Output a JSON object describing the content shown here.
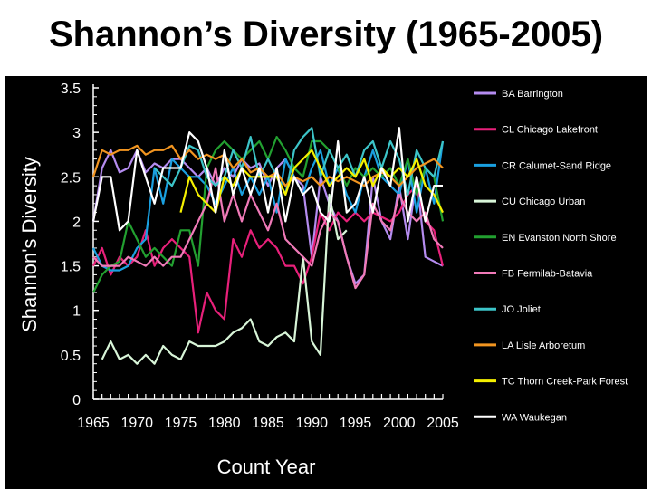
{
  "page": {
    "title": "Shannon’s Diversity (1965-2005)"
  },
  "chart_data": {
    "type": "line",
    "title": "Shannon’s Diversity (1965-2005)",
    "xlabel": "Count Year",
    "ylabel": "Shannon's Diversity",
    "xlim": [
      1965,
      2005
    ],
    "ylim": [
      0,
      3.5
    ],
    "xticks": [
      1965,
      1970,
      1975,
      1980,
      1985,
      1990,
      1995,
      2000,
      2005
    ],
    "yticks": [
      0,
      0.5,
      1,
      1.5,
      2,
      2.5,
      3,
      3.5
    ],
    "grid": false,
    "legend_position": "right",
    "background": "#000000",
    "series": [
      {
        "name": "BA Barrington",
        "color": "#b58cf0",
        "x": [
          1965,
          1966,
          1967,
          1968,
          1969,
          1970,
          1971,
          1972,
          1973,
          1974,
          1975,
          1976,
          1977,
          1978,
          1979,
          1980,
          1981,
          1982,
          1983,
          1984,
          1985,
          1986,
          1987,
          1988,
          1989,
          1990,
          1991,
          1992,
          1993,
          1994,
          1995,
          1996,
          1997,
          1998,
          1999,
          2000,
          2001,
          2002,
          2003,
          2004,
          2005
        ],
        "y": [
          2.0,
          2.6,
          2.8,
          2.55,
          2.6,
          2.8,
          2.55,
          2.65,
          2.6,
          2.7,
          2.7,
          2.6,
          2.5,
          2.6,
          2.4,
          2.6,
          2.5,
          2.7,
          2.6,
          2.65,
          2.4,
          2.6,
          2.7,
          2.5,
          2.4,
          1.6,
          2.5,
          2.2,
          2.0,
          1.6,
          1.3,
          1.4,
          2.5,
          2.0,
          1.8,
          2.4,
          1.8,
          2.5,
          1.6,
          1.55,
          1.5
        ]
      },
      {
        "name": "CL Chicago Lakefront",
        "color": "#e8207a",
        "x": [
          1965,
          1966,
          1967,
          1968,
          1969,
          1970,
          1971,
          1972,
          1973,
          1974,
          1975,
          1976,
          1977,
          1978,
          1979,
          1980,
          1981,
          1982,
          1983,
          1984,
          1985,
          1986,
          1987,
          1988,
          1989,
          1990,
          1991,
          1992,
          1993,
          1994,
          1995,
          1996,
          1997,
          1998,
          1999,
          2000,
          2001,
          2002,
          2003,
          2004,
          2005
        ],
        "y": [
          1.5,
          1.7,
          1.4,
          1.6,
          1.5,
          1.6,
          1.9,
          1.5,
          1.7,
          1.8,
          1.7,
          1.6,
          0.75,
          1.2,
          1.0,
          0.9,
          1.8,
          1.6,
          1.9,
          1.7,
          1.8,
          1.7,
          1.5,
          1.5,
          1.3,
          1.6,
          2.1,
          1.9,
          2.1,
          2.0,
          2.1,
          2.0,
          2.1,
          2.05,
          2.0,
          2.1,
          2.3,
          2.4,
          2.0,
          1.9,
          1.5
        ]
      },
      {
        "name": "CR Calumet-Sand Ridge",
        "color": "#1aa0e0",
        "x": [
          1965,
          1966,
          1967,
          1968,
          1969,
          1970,
          1971,
          1972,
          1973,
          1974,
          1975,
          1976,
          1977,
          1978,
          1979,
          1980,
          1981,
          1982,
          1983,
          1984,
          1985,
          1986,
          1987,
          1988,
          1989,
          1990,
          1991,
          1992,
          1993,
          1994,
          1995,
          1996,
          1997,
          1998,
          1999,
          2000,
          2001,
          2002,
          2003,
          2004,
          2005
        ],
        "y": [
          1.7,
          1.5,
          1.45,
          1.45,
          1.5,
          1.7,
          1.8,
          2.6,
          2.2,
          2.7,
          2.6,
          2.5,
          2.5,
          2.4,
          2.2,
          2.4,
          2.6,
          2.3,
          2.5,
          2.3,
          2.5,
          2.1,
          2.7,
          2.5,
          2.3,
          2.6,
          2.8,
          2.4,
          2.6,
          2.3,
          2.1,
          2.5,
          2.8,
          2.5,
          2.4,
          2.3,
          2.7,
          2.1,
          2.6,
          2.2,
          2.9
        ]
      },
      {
        "name": "CU Chicago Urban",
        "color": "#d8f5d8",
        "x": [
          1966,
          1967,
          1968,
          1969,
          1970,
          1971,
          1972,
          1973,
          1974,
          1975,
          1976,
          1977,
          1978,
          1979,
          1980,
          1981,
          1982,
          1983,
          1984,
          1985,
          1986,
          1987,
          1988,
          1989,
          1990,
          1991,
          1992,
          1993,
          1994
        ],
        "y": [
          0.45,
          0.65,
          0.45,
          0.5,
          0.4,
          0.5,
          0.4,
          0.6,
          0.5,
          0.45,
          0.65,
          0.6,
          0.6,
          0.6,
          0.65,
          0.75,
          0.8,
          0.9,
          0.65,
          0.6,
          0.7,
          0.75,
          0.65,
          1.6,
          0.65,
          0.5,
          2.3,
          1.8,
          1.9
        ]
      },
      {
        "name": "EN Evanston North Shore",
        "color": "#22a030",
        "x": [
          1965,
          1966,
          1967,
          1968,
          1969,
          1970,
          1971,
          1972,
          1973,
          1974,
          1975,
          1976,
          1977,
          1978,
          1979,
          1980,
          1981,
          1982,
          1983,
          1984,
          1985,
          1986,
          1987,
          1988,
          1989,
          1990,
          1991,
          1992,
          1993,
          1994,
          1995,
          1996,
          1997,
          1998,
          1999,
          2000,
          2001,
          2002,
          2003,
          2004,
          2005
        ],
        "y": [
          1.2,
          1.4,
          1.5,
          1.55,
          2.0,
          1.8,
          1.6,
          1.7,
          1.6,
          1.5,
          1.9,
          1.9,
          1.5,
          2.6,
          2.8,
          2.9,
          2.8,
          2.7,
          2.8,
          2.9,
          2.7,
          2.95,
          2.8,
          2.6,
          2.5,
          2.9,
          2.9,
          2.8,
          2.6,
          2.4,
          2.6,
          2.5,
          2.6,
          2.5,
          2.6,
          2.4,
          2.7,
          2.3,
          2.6,
          2.5,
          2.0
        ]
      },
      {
        "name": "FB Fermilab-Batavia",
        "color": "#f07ab8",
        "x": [
          1965,
          1966,
          1967,
          1968,
          1969,
          1970,
          1971,
          1972,
          1973,
          1974,
          1975,
          1976,
          1977,
          1978,
          1979,
          1980,
          1981,
          1982,
          1983,
          1984,
          1985,
          1986,
          1987,
          1988,
          1989,
          1990,
          1991,
          1992,
          1993,
          1994,
          1995,
          1996,
          1997,
          1998,
          1999,
          2000,
          2001,
          2002,
          2003,
          2004,
          2005
        ],
        "y": [
          1.6,
          1.5,
          1.5,
          1.5,
          1.6,
          1.55,
          1.5,
          1.6,
          1.5,
          1.6,
          1.6,
          1.8,
          2.0,
          2.2,
          2.6,
          2.0,
          2.3,
          2.0,
          2.3,
          2.1,
          1.9,
          2.2,
          1.8,
          1.7,
          1.6,
          1.5,
          1.9,
          2.1,
          2.0,
          1.6,
          1.25,
          1.4,
          2.2,
          2.0,
          1.9,
          2.3,
          2.1,
          2.0,
          2.1,
          1.8,
          1.7
        ]
      },
      {
        "name": "JO Joliet",
        "color": "#3cc4c8",
        "x": [
          1972,
          1973,
          1974,
          1975,
          1976,
          1977,
          1978,
          1979,
          1980,
          1981,
          1982,
          1983,
          1984,
          1985,
          1986,
          1987,
          1988,
          1989,
          1990,
          1991,
          1992,
          1993,
          1994,
          1995,
          1996,
          1997,
          1998,
          1999,
          2000,
          2001,
          2002,
          2003,
          2004,
          2005
        ],
        "y": [
          2.6,
          2.5,
          2.4,
          2.6,
          2.85,
          2.8,
          2.5,
          2.4,
          2.5,
          2.8,
          2.6,
          2.95,
          2.5,
          2.7,
          2.5,
          2.3,
          2.8,
          2.95,
          3.05,
          2.5,
          2.8,
          2.6,
          2.75,
          2.5,
          2.8,
          2.9,
          2.6,
          2.9,
          2.7,
          2.3,
          2.8,
          2.6,
          2.5,
          2.9
        ]
      },
      {
        "name": "LA Lisle Arboretum",
        "color": "#f29520",
        "x": [
          1965,
          1966,
          1967,
          1968,
          1969,
          1970,
          1971,
          1972,
          1973,
          1974,
          1975,
          1976,
          1977,
          1978,
          1979,
          1980,
          1981,
          1982,
          1983,
          1984,
          1985,
          1986,
          1987,
          1988,
          1989,
          1990,
          1991,
          1992,
          1993,
          1994,
          1995,
          1996,
          1997,
          1998,
          1999,
          2000,
          2001,
          2002,
          2003,
          2004,
          2005
        ],
        "y": [
          2.5,
          2.8,
          2.75,
          2.8,
          2.8,
          2.85,
          2.75,
          2.8,
          2.8,
          2.85,
          2.7,
          2.8,
          2.7,
          2.75,
          2.7,
          2.75,
          2.6,
          2.7,
          2.55,
          2.6,
          2.5,
          2.55,
          2.4,
          2.5,
          2.45,
          2.5,
          2.4,
          2.5,
          2.45,
          2.5,
          2.45,
          2.4,
          2.5,
          2.55,
          2.5,
          2.4,
          2.5,
          2.6,
          2.65,
          2.7,
          2.6
        ]
      },
      {
        "name": "TC Thorn Creek-Park Forest",
        "color": "#f5f000",
        "x": [
          1975,
          1976,
          1977,
          1978,
          1979,
          1980,
          1981,
          1982,
          1983,
          1984,
          1985,
          1986,
          1987,
          1988,
          1989,
          1990,
          1991,
          1992,
          1993,
          1994,
          1995,
          1996,
          1997,
          1998,
          1999,
          2000,
          2001,
          2002,
          2003,
          2004,
          2005
        ],
        "y": [
          2.1,
          2.5,
          2.3,
          2.2,
          2.1,
          2.5,
          2.4,
          2.6,
          2.5,
          2.5,
          2.5,
          2.5,
          2.3,
          2.6,
          2.7,
          2.8,
          2.6,
          2.4,
          2.5,
          2.6,
          2.5,
          2.7,
          2.4,
          2.6,
          2.5,
          2.6,
          2.5,
          2.7,
          2.4,
          2.3,
          2.1
        ]
      },
      {
        "name": "WA Waukegan",
        "color": "#ffffff",
        "x": [
          1965,
          1966,
          1967,
          1968,
          1969,
          1970,
          1971,
          1972,
          1973,
          1974,
          1975,
          1976,
          1977,
          1978,
          1979,
          1980,
          1981,
          1982,
          1983,
          1984,
          1985,
          1986,
          1987,
          1988,
          1989,
          1990,
          1991,
          1992,
          1993,
          1994,
          1995,
          1996,
          1997,
          1998,
          1999,
          2000,
          2001,
          2002,
          2003,
          2004,
          2005
        ],
        "y": [
          2.0,
          2.5,
          2.5,
          1.9,
          2.0,
          2.8,
          2.5,
          2.2,
          2.6,
          2.6,
          2.6,
          3.0,
          2.9,
          2.6,
          2.1,
          2.8,
          2.3,
          2.6,
          2.3,
          2.6,
          2.1,
          2.6,
          2.0,
          2.5,
          2.3,
          2.4,
          2.1,
          2.0,
          2.9,
          2.1,
          2.2,
          2.5,
          2.1,
          2.6,
          2.4,
          3.05,
          2.0,
          2.5,
          2.0,
          2.4,
          2.4
        ]
      }
    ]
  }
}
